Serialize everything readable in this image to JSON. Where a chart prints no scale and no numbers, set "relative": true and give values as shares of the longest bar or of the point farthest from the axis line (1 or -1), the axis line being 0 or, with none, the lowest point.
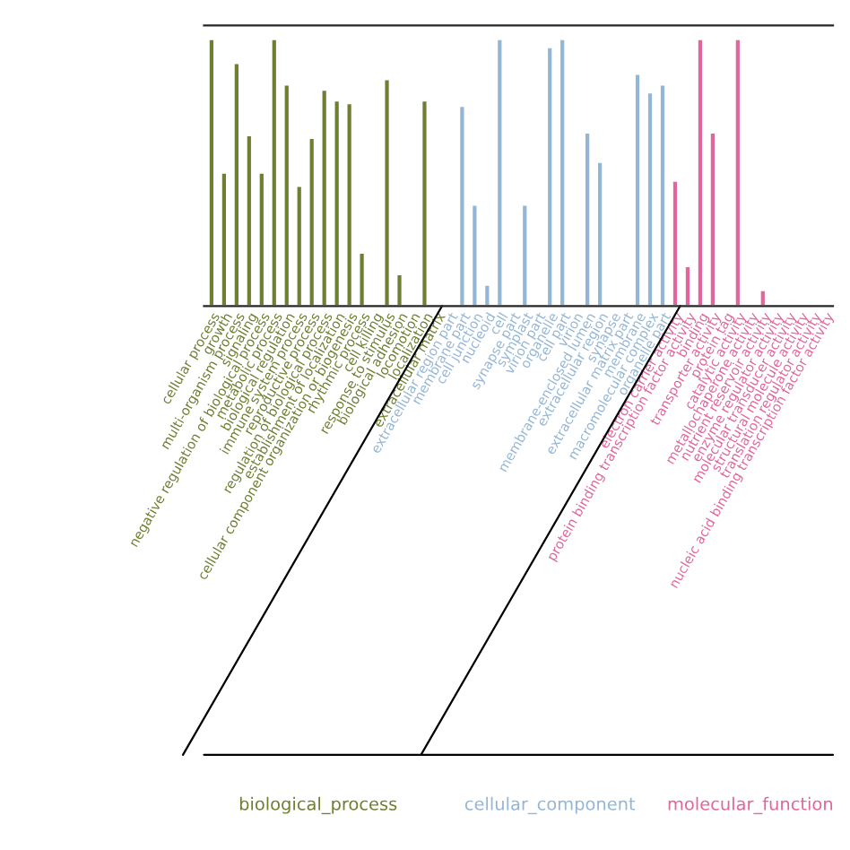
{
  "chart_data": {
    "type": "bar",
    "relative": true,
    "legend": false,
    "categories": [
      "cellular process",
      "growth",
      "multi-organism process",
      "signaling",
      "negative regulation of biological process",
      "metabolic process",
      "biological regulation",
      "immune system process",
      "reproductive process",
      "regulation of biological process",
      "establishment of localization",
      "cellular component organization or biogenesis",
      "rhythmic process",
      "cell killing",
      "response to stimulus",
      "biological adhesion",
      "locomotion",
      "localization",
      "extracellular matrix",
      "extracellular region part",
      "membrane part",
      "cell junction",
      "nucleoid",
      "cell",
      "synapse part",
      "symplast",
      "virion part",
      "organelle",
      "cell part",
      "virion",
      "membrane-enclosed lumen",
      "extracellular region",
      "synapse",
      "extracellular matrix part",
      "membrane",
      "macromolecular complex",
      "organelle part",
      "electron carrier activity",
      "protein binding transcription factor activity",
      "binding",
      "transporter activity",
      "protein tag",
      "catalytic activity",
      "metallochaperone activity",
      "nutrient reservoir activity",
      "enzyme regulator activity",
      "molecular transducer activity",
      "structural molecule activity",
      "translation regulator activity",
      "nucleic acid binding transcription factor activity"
    ],
    "series": [
      {
        "name": "biological_process",
        "color": "#6e7f32",
        "values": [
          1.0,
          0.5,
          0.91,
          0.64,
          0.5,
          1.0,
          0.83,
          0.45,
          0.63,
          0.81,
          0.77,
          0.76,
          0.2,
          null,
          0.85,
          0.12,
          null,
          0.77,
          null,
          null,
          null,
          null,
          null,
          null,
          null,
          null,
          null,
          null,
          null,
          null,
          null,
          null,
          null,
          null,
          null,
          null,
          null,
          null,
          null,
          null,
          null,
          null,
          null,
          null,
          null,
          null,
          null,
          null,
          null,
          null
        ]
      },
      {
        "name": "cellular_component",
        "color": "#94b6d6",
        "values": [
          null,
          null,
          null,
          null,
          null,
          null,
          null,
          null,
          null,
          null,
          null,
          null,
          null,
          null,
          null,
          null,
          null,
          null,
          null,
          null,
          0.75,
          0.38,
          0.08,
          1.0,
          null,
          0.38,
          null,
          0.97,
          1.0,
          null,
          0.65,
          0.54,
          null,
          null,
          0.87,
          0.8,
          0.83,
          null,
          null,
          null,
          null,
          null,
          null,
          null,
          null,
          null,
          null,
          null,
          null,
          null
        ]
      },
      {
        "name": "molecular_function",
        "color": "#e0669c",
        "values": [
          null,
          null,
          null,
          null,
          null,
          null,
          null,
          null,
          null,
          null,
          null,
          null,
          null,
          null,
          null,
          null,
          null,
          null,
          null,
          null,
          null,
          null,
          null,
          null,
          null,
          null,
          null,
          null,
          null,
          null,
          null,
          null,
          null,
          null,
          null,
          null,
          null,
          0.47,
          0.15,
          1.0,
          0.65,
          null,
          1.0,
          null,
          0.06,
          null,
          null,
          null,
          null,
          null
        ]
      }
    ]
  }
}
